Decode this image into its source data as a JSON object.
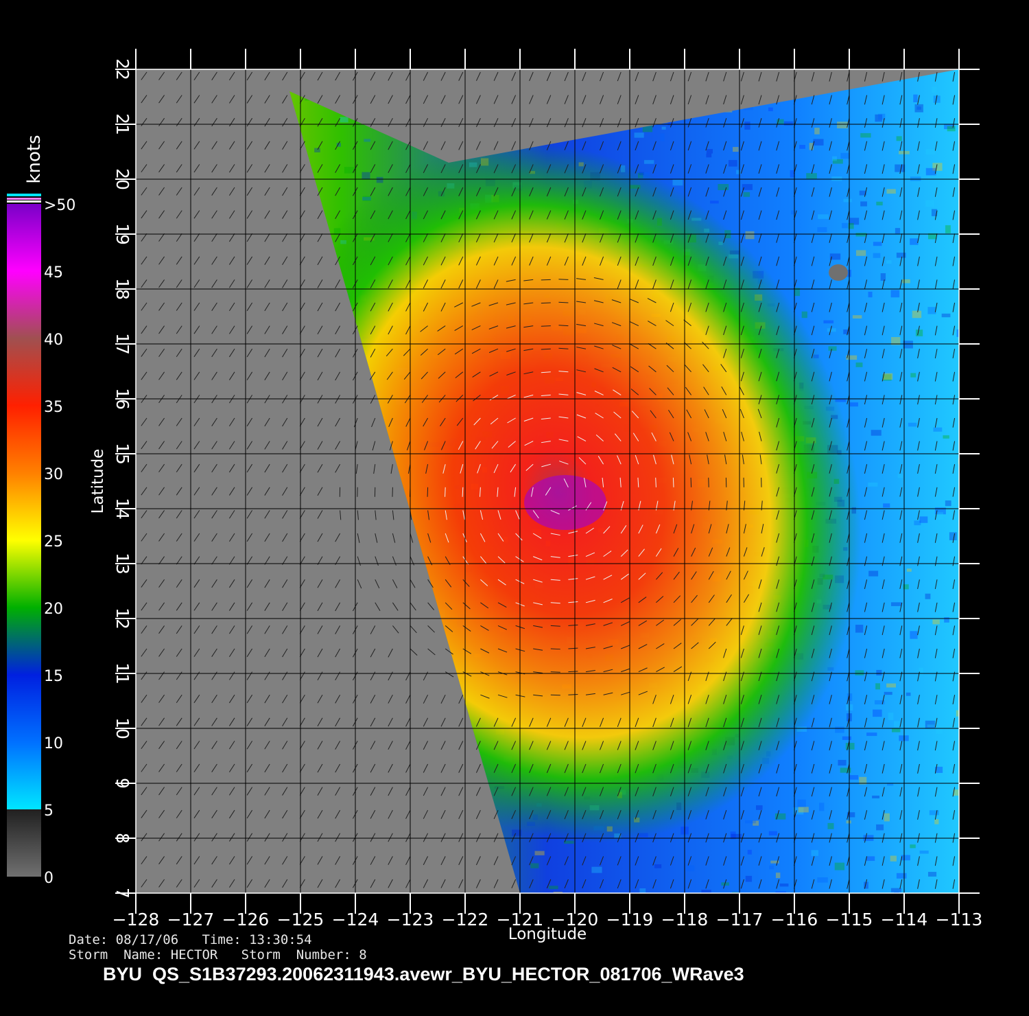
{
  "chart_data": {
    "type": "heatmap",
    "xlabel": "Longitude",
    "ylabel": "Latitude",
    "xlim": [
      -128,
      -113
    ],
    "ylim": [
      7,
      22
    ],
    "x_ticks": [
      "−128",
      "−127",
      "−126",
      "−125",
      "−124",
      "−123",
      "−122",
      "−121",
      "−120",
      "−119",
      "−118",
      "−117",
      "−116",
      "−115",
      "−114",
      "−113"
    ],
    "y_ticks": [
      "7",
      "8",
      "9",
      "10",
      "11",
      "12",
      "13",
      "14",
      "15",
      "16",
      "17",
      "18",
      "19",
      "20",
      "21",
      "22"
    ],
    "grid": true,
    "colorbar": {
      "unit": "knots",
      "labels": [
        "0",
        "5",
        "10",
        "15",
        "20",
        "25",
        "30",
        "35",
        "40",
        "45",
        ">50"
      ],
      "colors": [
        "#808080",
        "#00e6ff",
        "#0070ff",
        "#0020e0",
        "#00b000",
        "#ffff00",
        "#ff8000",
        "#ff2000",
        "#a05050",
        "#ff00ff",
        "#7a00c8"
      ]
    },
    "storm_center": {
      "lon": -120.3,
      "lat": 14.3
    },
    "swath_west_edge": [
      [
        -125.2,
        21.6
      ],
      [
        -121.0,
        7.0
      ]
    ],
    "land_mask": {
      "lon": -115.2,
      "lat": 18.3
    }
  },
  "footer": {
    "line1": "Date: 08/17/06   Time: 13:30:54",
    "line2": "Storm  Name: HECTOR   Storm  Number: 8",
    "filename": "BYU  QS_S1B37293.20062311943.avewr_BYU_HECTOR_081706_WRave3"
  }
}
